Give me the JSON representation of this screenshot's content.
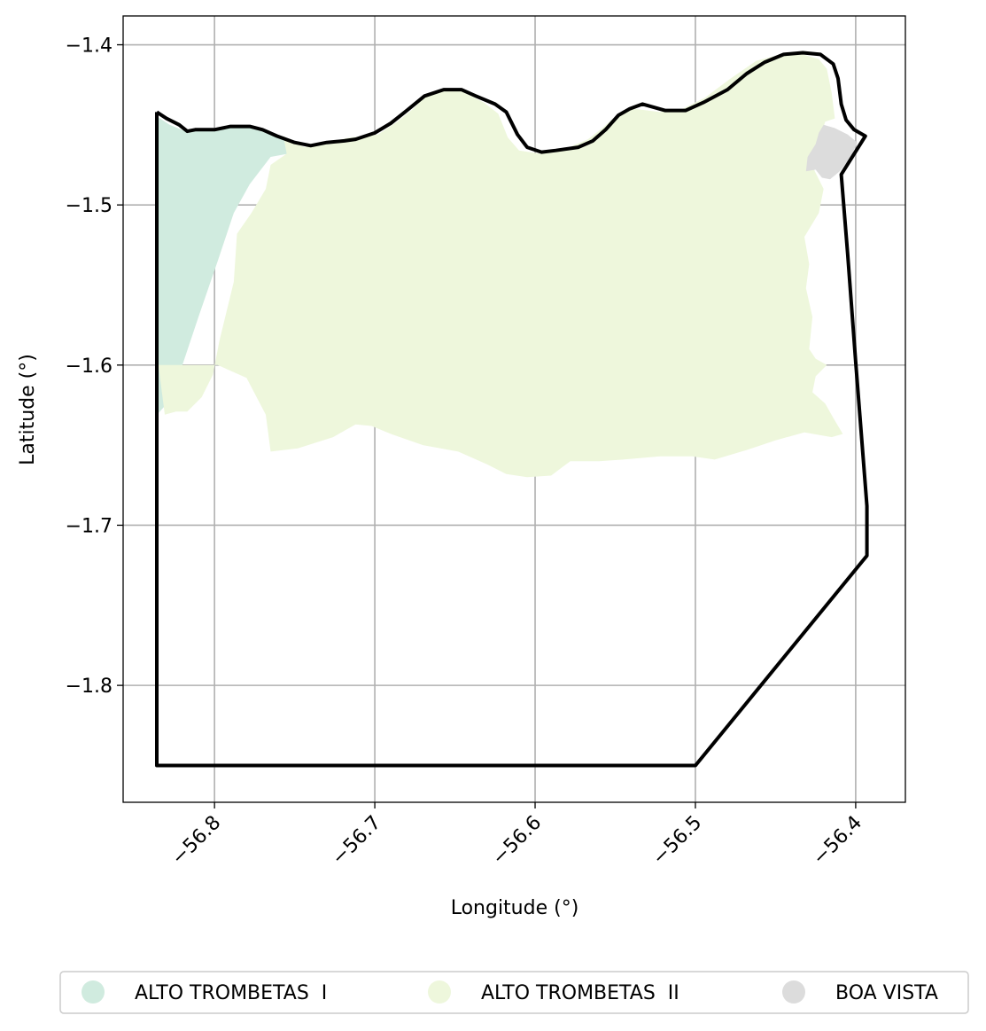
{
  "chart_data": {
    "type": "map",
    "xlabel": "Longitude (°)",
    "ylabel": "Latitude (°)",
    "xlim": [
      -56.857,
      -56.369
    ],
    "ylim": [
      -1.873,
      -1.382
    ],
    "grid": true,
    "xticks": [
      {
        "value": -56.8,
        "label": "−56.8"
      },
      {
        "value": -56.7,
        "label": "−56.7"
      },
      {
        "value": -56.6,
        "label": "−56.6"
      },
      {
        "value": -56.5,
        "label": "−56.5"
      },
      {
        "value": -56.4,
        "label": "−56.4"
      }
    ],
    "yticks": [
      {
        "value": -1.4,
        "label": "−1.4"
      },
      {
        "value": -1.5,
        "label": "−1.5"
      },
      {
        "value": -1.6,
        "label": "−1.6"
      },
      {
        "value": -1.7,
        "label": "−1.7"
      },
      {
        "value": -1.8,
        "label": "−1.8"
      }
    ],
    "legend_placement": "below",
    "regions": [
      {
        "name": "ALTO TROMBETAS  I",
        "color": "#d0ebdf",
        "polygon": [
          [
            -56.837,
            -1.444
          ],
          [
            -56.828,
            -1.45
          ],
          [
            -56.818,
            -1.454
          ],
          [
            -56.803,
            -1.453
          ],
          [
            -56.786,
            -1.451
          ],
          [
            -56.775,
            -1.452
          ],
          [
            -56.762,
            -1.456
          ],
          [
            -56.755,
            -1.46
          ],
          [
            -56.752,
            -1.464
          ],
          [
            -56.743,
            -1.466
          ],
          [
            -56.765,
            -1.47
          ],
          [
            -56.778,
            -1.487
          ],
          [
            -56.788,
            -1.505
          ],
          [
            -56.798,
            -1.535
          ],
          [
            -56.81,
            -1.57
          ],
          [
            -56.82,
            -1.6
          ],
          [
            -56.826,
            -1.62
          ],
          [
            -56.835,
            -1.63
          ],
          [
            -56.837,
            -1.63
          ]
        ]
      },
      {
        "name": "ALTO TROMBETAS  II",
        "color": "#eef7dc",
        "polygon": [
          [
            -56.757,
            -1.457
          ],
          [
            -56.744,
            -1.464
          ],
          [
            -56.73,
            -1.461
          ],
          [
            -56.716,
            -1.458
          ],
          [
            -56.698,
            -1.456
          ],
          [
            -56.686,
            -1.448
          ],
          [
            -56.676,
            -1.44
          ],
          [
            -56.668,
            -1.432
          ],
          [
            -56.656,
            -1.428
          ],
          [
            -56.646,
            -1.429
          ],
          [
            -56.632,
            -1.436
          ],
          [
            -56.623,
            -1.443
          ],
          [
            -56.617,
            -1.458
          ],
          [
            -56.61,
            -1.466
          ],
          [
            -56.597,
            -1.468
          ],
          [
            -56.581,
            -1.465
          ],
          [
            -56.567,
            -1.459
          ],
          [
            -56.558,
            -1.452
          ],
          [
            -56.548,
            -1.443
          ],
          [
            -56.538,
            -1.44
          ],
          [
            -56.522,
            -1.442
          ],
          [
            -56.508,
            -1.44
          ],
          [
            -56.494,
            -1.433
          ],
          [
            -56.478,
            -1.421
          ],
          [
            -56.462,
            -1.41
          ],
          [
            -56.447,
            -1.406
          ],
          [
            -56.433,
            -1.406
          ],
          [
            -56.423,
            -1.409
          ],
          [
            -56.418,
            -1.415
          ],
          [
            -56.415,
            -1.43
          ],
          [
            -56.413,
            -1.446
          ],
          [
            -56.419,
            -1.448
          ],
          [
            -56.423,
            -1.46
          ],
          [
            -56.426,
            -1.478
          ],
          [
            -56.42,
            -1.49
          ],
          [
            -56.423,
            -1.505
          ],
          [
            -56.432,
            -1.52
          ],
          [
            -56.429,
            -1.537
          ],
          [
            -56.431,
            -1.552
          ],
          [
            -56.427,
            -1.57
          ],
          [
            -56.429,
            -1.59
          ],
          [
            -56.425,
            -1.596
          ],
          [
            -56.418,
            -1.6
          ],
          [
            -56.425,
            -1.607
          ],
          [
            -56.427,
            -1.617
          ],
          [
            -56.419,
            -1.624
          ],
          [
            -56.414,
            -1.633
          ],
          [
            -56.408,
            -1.643
          ],
          [
            -56.415,
            -1.645
          ],
          [
            -56.432,
            -1.642
          ],
          [
            -56.45,
            -1.647
          ],
          [
            -56.468,
            -1.653
          ],
          [
            -56.488,
            -1.659
          ],
          [
            -56.502,
            -1.657
          ],
          [
            -56.522,
            -1.657
          ],
          [
            -56.545,
            -1.659
          ],
          [
            -56.56,
            -1.66
          ],
          [
            -56.578,
            -1.66
          ],
          [
            -56.59,
            -1.669
          ],
          [
            -56.605,
            -1.67
          ],
          [
            -56.618,
            -1.668
          ],
          [
            -56.63,
            -1.662
          ],
          [
            -56.648,
            -1.654
          ],
          [
            -56.67,
            -1.65
          ],
          [
            -56.69,
            -1.643
          ],
          [
            -56.702,
            -1.638
          ],
          [
            -56.712,
            -1.637
          ],
          [
            -56.726,
            -1.645
          ],
          [
            -56.748,
            -1.652
          ],
          [
            -56.765,
            -1.654
          ],
          [
            -56.768,
            -1.631
          ],
          [
            -56.78,
            -1.608
          ],
          [
            -56.798,
            -1.6
          ],
          [
            -56.835,
            -1.6
          ],
          [
            -56.831,
            -1.631
          ],
          [
            -56.824,
            -1.629
          ],
          [
            -56.817,
            -1.629
          ],
          [
            -56.808,
            -1.62
          ],
          [
            -56.801,
            -1.606
          ],
          [
            -56.797,
            -1.585
          ],
          [
            -56.788,
            -1.548
          ],
          [
            -56.786,
            -1.518
          ],
          [
            -56.777,
            -1.505
          ],
          [
            -56.768,
            -1.49
          ],
          [
            -56.765,
            -1.475
          ],
          [
            -56.755,
            -1.468
          ]
        ]
      },
      {
        "name": "BOA VISTA",
        "color": "#dcdcdc",
        "polygon": [
          [
            -56.42,
            -1.45
          ],
          [
            -56.413,
            -1.452
          ],
          [
            -56.405,
            -1.456
          ],
          [
            -56.399,
            -1.461
          ],
          [
            -56.403,
            -1.47
          ],
          [
            -56.41,
            -1.479
          ],
          [
            -56.416,
            -1.484
          ],
          [
            -56.421,
            -1.483
          ],
          [
            -56.425,
            -1.478
          ],
          [
            -56.431,
            -1.479
          ],
          [
            -56.43,
            -1.47
          ],
          [
            -56.425,
            -1.462
          ],
          [
            -56.423,
            -1.455
          ]
        ]
      }
    ],
    "boundary": [
      [
        -56.836,
        -1.442
      ],
      [
        -56.83,
        -1.446
      ],
      [
        -56.822,
        -1.45
      ],
      [
        -56.817,
        -1.454
      ],
      [
        -56.812,
        -1.453
      ],
      [
        -56.8,
        -1.453
      ],
      [
        -56.79,
        -1.451
      ],
      [
        -56.778,
        -1.451
      ],
      [
        -56.77,
        -1.453
      ],
      [
        -56.761,
        -1.457
      ],
      [
        -56.75,
        -1.461
      ],
      [
        -56.74,
        -1.463
      ],
      [
        -56.73,
        -1.461
      ],
      [
        -56.719,
        -1.46
      ],
      [
        -56.712,
        -1.459
      ],
      [
        -56.7,
        -1.455
      ],
      [
        -56.69,
        -1.449
      ],
      [
        -56.68,
        -1.441
      ],
      [
        -56.669,
        -1.432
      ],
      [
        -56.657,
        -1.428
      ],
      [
        -56.646,
        -1.428
      ],
      [
        -56.637,
        -1.432
      ],
      [
        -56.625,
        -1.437
      ],
      [
        -56.618,
        -1.442
      ],
      [
        -56.611,
        -1.456
      ],
      [
        -56.605,
        -1.464
      ],
      [
        -56.596,
        -1.467
      ],
      [
        -56.587,
        -1.466
      ],
      [
        -56.573,
        -1.464
      ],
      [
        -56.564,
        -1.46
      ],
      [
        -56.556,
        -1.453
      ],
      [
        -56.548,
        -1.444
      ],
      [
        -56.541,
        -1.44
      ],
      [
        -56.533,
        -1.437
      ],
      [
        -56.519,
        -1.441
      ],
      [
        -56.506,
        -1.441
      ],
      [
        -56.495,
        -1.436
      ],
      [
        -56.48,
        -1.428
      ],
      [
        -56.468,
        -1.418
      ],
      [
        -56.457,
        -1.411
      ],
      [
        -56.445,
        -1.406
      ],
      [
        -56.433,
        -1.405
      ],
      [
        -56.422,
        -1.406
      ],
      [
        -56.414,
        -1.412
      ],
      [
        -56.411,
        -1.421
      ],
      [
        -56.409,
        -1.437
      ],
      [
        -56.406,
        -1.447
      ],
      [
        -56.401,
        -1.453
      ],
      [
        -56.394,
        -1.457
      ],
      [
        -56.409,
        -1.481
      ],
      [
        -56.405,
        -1.531
      ],
      [
        -56.4,
        -1.598
      ],
      [
        -56.393,
        -1.688
      ],
      [
        -56.393,
        -1.719
      ],
      [
        -56.5,
        -1.85
      ],
      [
        -56.836,
        -1.85
      ],
      [
        -56.836,
        -1.442
      ]
    ]
  }
}
